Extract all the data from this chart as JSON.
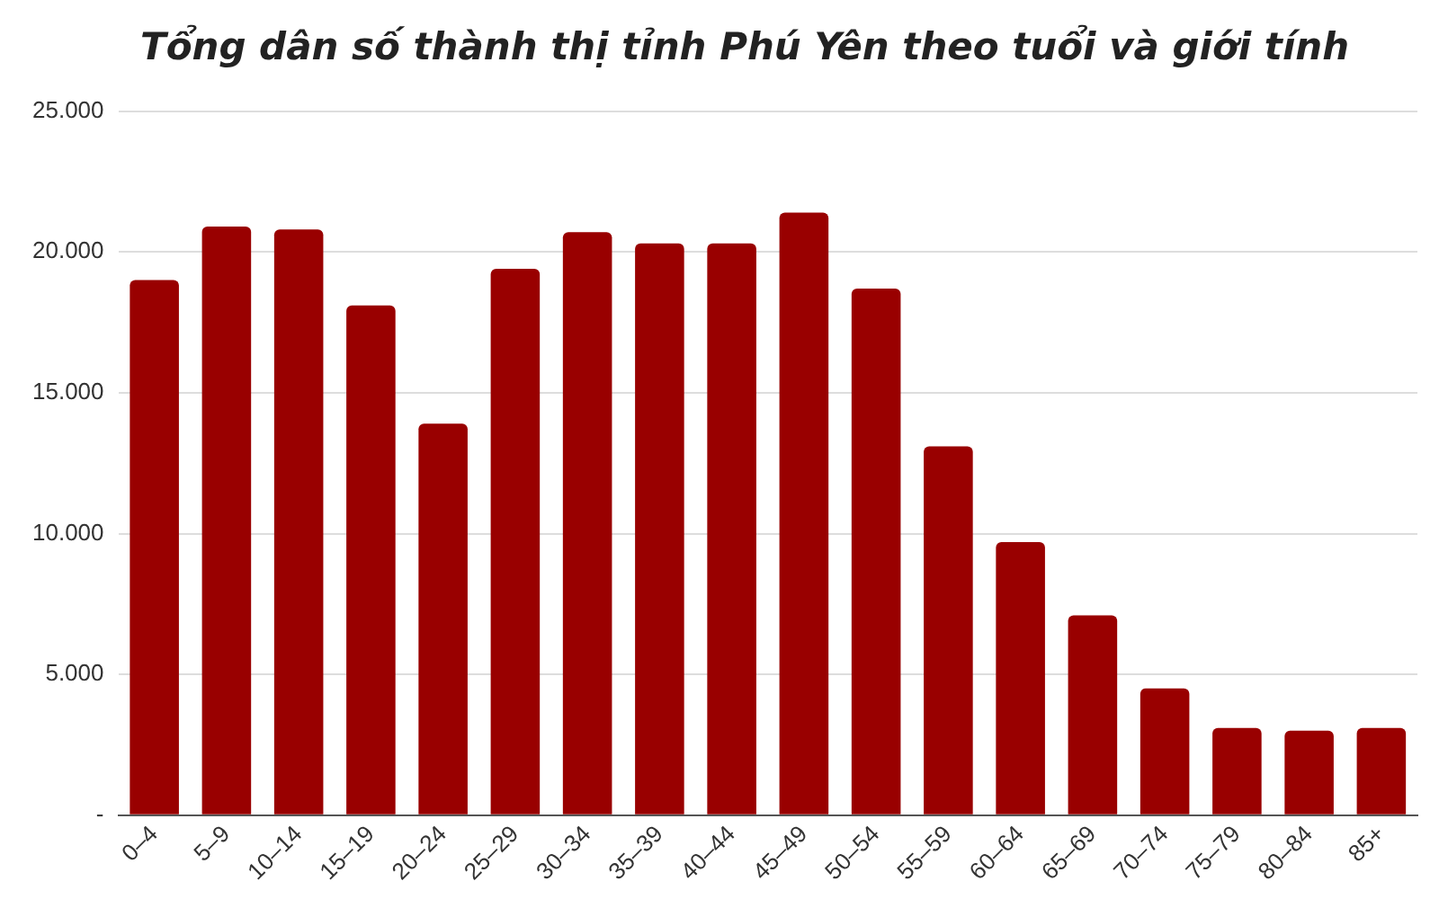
{
  "chart_data": {
    "type": "bar",
    "title": "Tổng dân số thành thị tỉnh Phú Yên theo tuổi và giới tính",
    "categories": [
      "0–4",
      "5–9",
      "10–14",
      "15–19",
      "20–24",
      "25–29",
      "30–34",
      "35–39",
      "40–44",
      "45–49",
      "50–54",
      "55–59",
      "60–64",
      "65–69",
      "70–74",
      "75–79",
      "80–84",
      "85+"
    ],
    "values": [
      19000,
      20900,
      20800,
      18100,
      13900,
      19400,
      20700,
      20300,
      20300,
      21400,
      18700,
      13100,
      9700,
      7100,
      4500,
      3100,
      3000,
      3100
    ],
    "color": "#990000",
    "ylim": [
      0,
      25000
    ],
    "yticks": [
      {
        "value": 0,
        "label": "-"
      },
      {
        "value": 5000,
        "label": "5.000"
      },
      {
        "value": 10000,
        "label": "10.000"
      },
      {
        "value": 15000,
        "label": "15.000"
      },
      {
        "value": 20000,
        "label": "20.000"
      },
      {
        "value": 25000,
        "label": "25.000"
      }
    ],
    "grid": "y",
    "legend": false
  }
}
